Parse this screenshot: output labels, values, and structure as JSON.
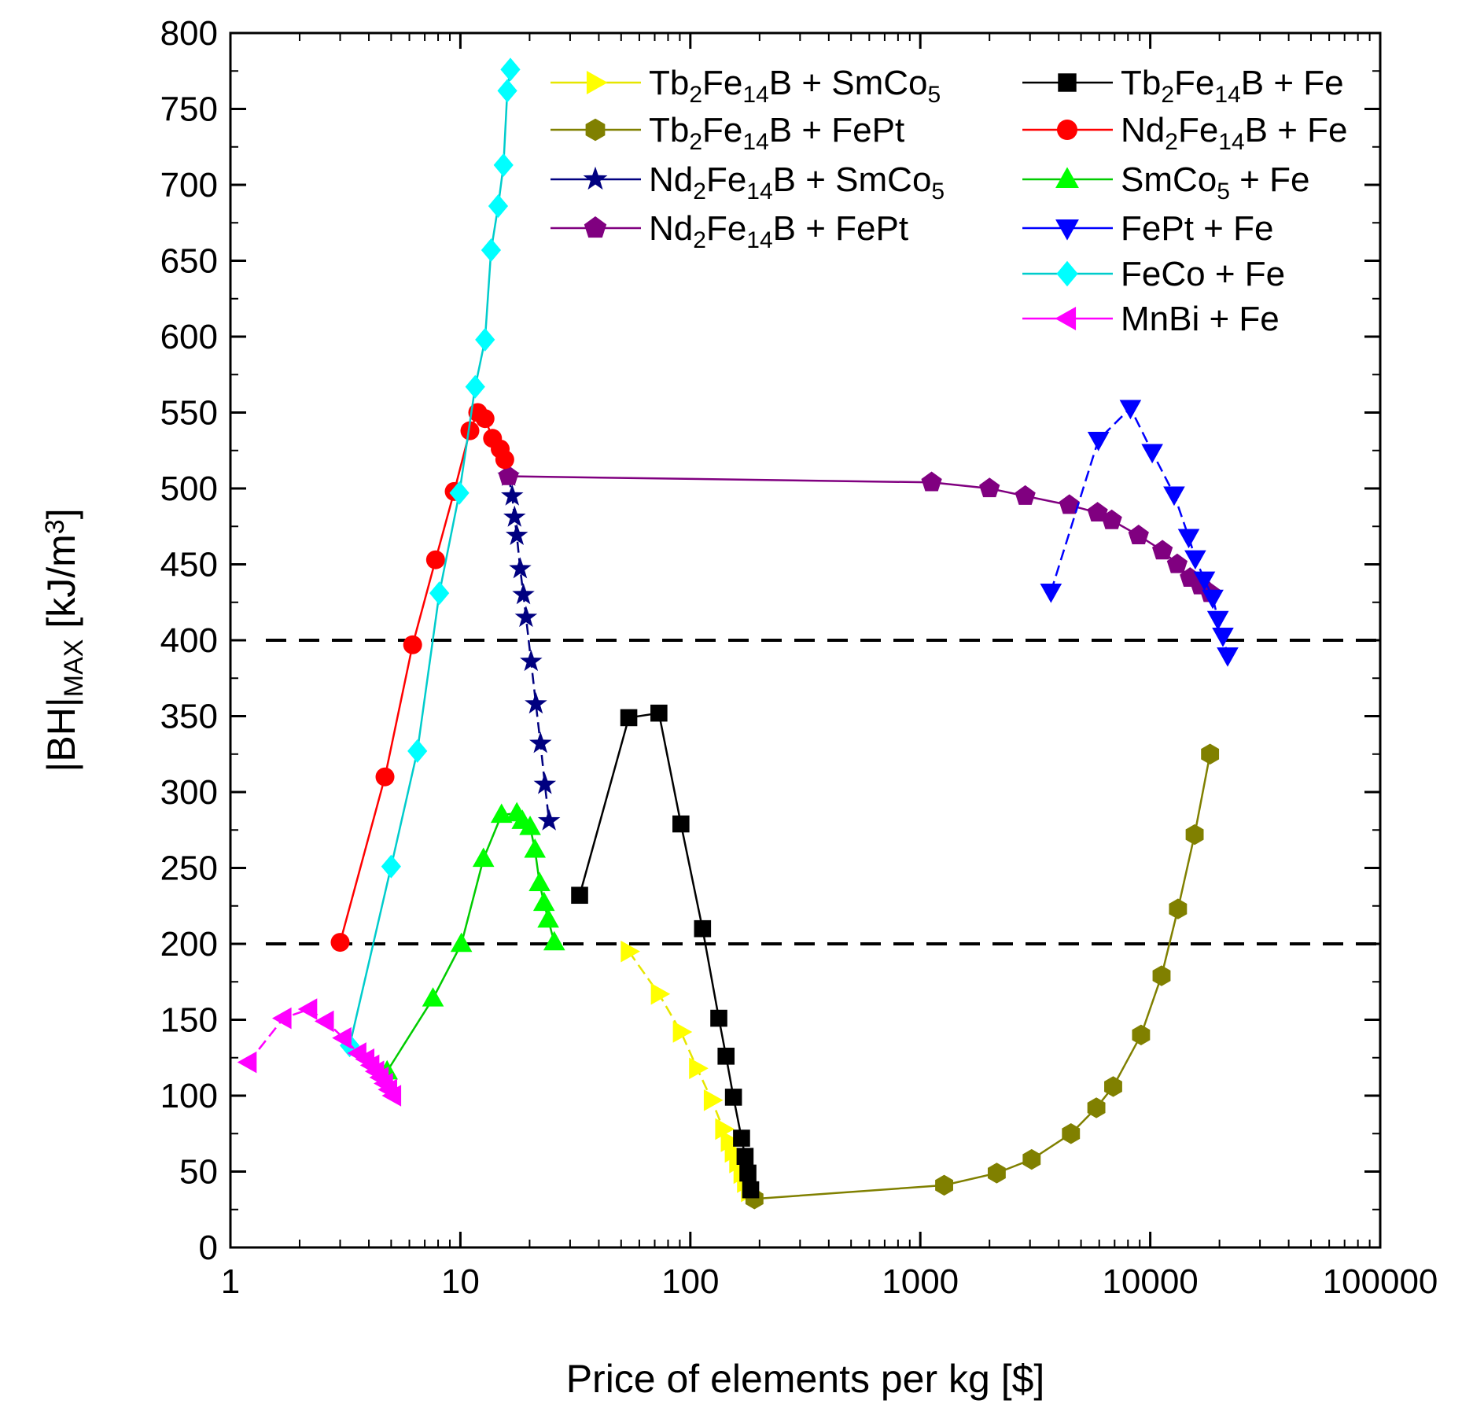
{
  "chart_data": {
    "type": "scatter",
    "xscale": "log",
    "xlim": [
      1,
      100000
    ],
    "ylim": [
      0,
      800
    ],
    "xlabel": "Price of elements per kg [$]",
    "ylabel": {
      "main": "|BH|",
      "sub": "MAX",
      "unit": " [kJ/m",
      "sup": "3",
      "close": "]"
    },
    "xticks": [
      {
        "value": 1,
        "label": "1"
      },
      {
        "value": 10,
        "label": "10"
      },
      {
        "value": 100,
        "label": "100"
      },
      {
        "value": 1000,
        "label": "1000"
      },
      {
        "value": 10000,
        "label": "10000"
      },
      {
        "value": 100000,
        "label": "100000"
      }
    ],
    "yticks": [
      0,
      50,
      100,
      150,
      200,
      250,
      300,
      350,
      400,
      450,
      500,
      550,
      600,
      650,
      700,
      750,
      800
    ],
    "reference_lines": [
      200,
      400
    ],
    "legend_placement": "top-right",
    "series": [
      {
        "name": [
          {
            "t": "Tb"
          },
          {
            "t": "2",
            "sub": true
          },
          {
            "t": "Fe"
          },
          {
            "t": "14",
            "sub": true
          },
          {
            "t": "B + SmCo"
          },
          {
            "t": "5",
            "sub": true
          }
        ],
        "color": "#ffff00",
        "line_color": "#e6e600",
        "marker": "triangle-right",
        "dashed": true,
        "points": [
          [
            54,
            195
          ],
          [
            73,
            167
          ],
          [
            91,
            142
          ],
          [
            107,
            118
          ],
          [
            124,
            97
          ],
          [
            139,
            78
          ],
          [
            147,
            70
          ],
          [
            153,
            63
          ],
          [
            160,
            56
          ],
          [
            167,
            49
          ],
          [
            173,
            43
          ],
          [
            180,
            37
          ]
        ]
      },
      {
        "name": [
          {
            "t": "Tb"
          },
          {
            "t": "2",
            "sub": true
          },
          {
            "t": "Fe"
          },
          {
            "t": "14",
            "sub": true
          },
          {
            "t": "B + FePt"
          }
        ],
        "color": "#808000",
        "line_color": "#808000",
        "marker": "hexagon",
        "dashed": false,
        "points": [
          [
            190,
            32
          ],
          [
            1270,
            41
          ],
          [
            2150,
            49
          ],
          [
            3050,
            58
          ],
          [
            4520,
            75
          ],
          [
            5830,
            92
          ],
          [
            6900,
            106
          ],
          [
            9120,
            140
          ],
          [
            11200,
            179
          ],
          [
            13200,
            223
          ],
          [
            15600,
            272
          ],
          [
            18200,
            325
          ]
        ]
      },
      {
        "name": [
          {
            "t": "Nd"
          },
          {
            "t": "2",
            "sub": true
          },
          {
            "t": "Fe"
          },
          {
            "t": "14",
            "sub": true
          },
          {
            "t": "B + SmCo"
          },
          {
            "t": "5",
            "sub": true
          }
        ],
        "color": "#000080",
        "line_color": "#000080",
        "marker": "star",
        "dashed": true,
        "points": [
          [
            16.2,
            508
          ],
          [
            16.8,
            495
          ],
          [
            17.2,
            481
          ],
          [
            17.6,
            469
          ],
          [
            18.2,
            447
          ],
          [
            18.8,
            430
          ],
          [
            19.3,
            415
          ],
          [
            20.3,
            386
          ],
          [
            21.3,
            358
          ],
          [
            22.3,
            332
          ],
          [
            23.3,
            305
          ],
          [
            24.3,
            281
          ]
        ]
      },
      {
        "name": [
          {
            "t": "Nd"
          },
          {
            "t": "2",
            "sub": true
          },
          {
            "t": "Fe"
          },
          {
            "t": "14",
            "sub": true
          },
          {
            "t": "B + FePt"
          }
        ],
        "color": "#800080",
        "line_color": "#800080",
        "marker": "pentagon",
        "dashed": false,
        "points": [
          [
            16.2,
            508
          ],
          [
            1120,
            504
          ],
          [
            2000,
            500
          ],
          [
            2860,
            495
          ],
          [
            4450,
            489
          ],
          [
            5900,
            484
          ],
          [
            6800,
            479
          ],
          [
            8900,
            469
          ],
          [
            11300,
            459
          ],
          [
            13100,
            450
          ],
          [
            14900,
            441
          ],
          [
            16500,
            436
          ],
          [
            18200,
            431
          ]
        ]
      },
      {
        "name": [
          {
            "t": "Tb"
          },
          {
            "t": "2",
            "sub": true
          },
          {
            "t": "Fe"
          },
          {
            "t": "14",
            "sub": true
          },
          {
            "t": "B + Fe"
          }
        ],
        "color": "#000000",
        "line_color": "#000000",
        "marker": "square",
        "dashed": false,
        "points": [
          [
            33,
            232
          ],
          [
            54,
            349
          ],
          [
            73,
            352
          ],
          [
            91,
            279
          ],
          [
            113,
            210
          ],
          [
            133,
            151
          ],
          [
            143,
            126
          ],
          [
            154,
            99
          ],
          [
            167,
            72
          ],
          [
            173,
            60
          ],
          [
            178,
            49
          ],
          [
            183,
            38
          ]
        ]
      },
      {
        "name": [
          {
            "t": "Nd"
          },
          {
            "t": "2",
            "sub": true
          },
          {
            "t": "Fe"
          },
          {
            "t": "14",
            "sub": true
          },
          {
            "t": "B + Fe"
          }
        ],
        "color": "#ff0000",
        "line_color": "#ff0000",
        "marker": "circle",
        "dashed": false,
        "points": [
          [
            3.0,
            201
          ],
          [
            4.7,
            310
          ],
          [
            6.2,
            397
          ],
          [
            7.8,
            453
          ],
          [
            9.4,
            498
          ],
          [
            11.0,
            538
          ],
          [
            11.9,
            550
          ],
          [
            12.8,
            546
          ],
          [
            13.8,
            533
          ],
          [
            14.9,
            526
          ],
          [
            15.6,
            519
          ]
        ]
      },
      {
        "name": [
          {
            "t": "SmCo"
          },
          {
            "t": "5",
            "sub": true
          },
          {
            "t": " + Fe"
          }
        ],
        "color": "#00ff00",
        "line_color": "#00cc00",
        "marker": "triangle-up",
        "dashed": false,
        "points": [
          [
            4.8,
            116
          ],
          [
            7.6,
            164
          ],
          [
            10.1,
            200
          ],
          [
            12.6,
            256
          ],
          [
            15.1,
            285
          ],
          [
            17.6,
            286
          ],
          [
            18.6,
            281
          ],
          [
            20.1,
            277
          ],
          [
            21.1,
            262
          ],
          [
            22.1,
            240
          ],
          [
            23.1,
            227
          ],
          [
            24.1,
            216
          ],
          [
            25.6,
            201
          ]
        ]
      },
      {
        "name": [
          {
            "t": "FePt + Fe"
          }
        ],
        "color": "#0000ff",
        "line_color": "#0000ff",
        "marker": "triangle-down",
        "dashed": true,
        "points": [
          [
            3700,
            432
          ],
          [
            5950,
            532
          ],
          [
            8200,
            553
          ],
          [
            10200,
            524
          ],
          [
            12700,
            496
          ],
          [
            14700,
            468
          ],
          [
            15700,
            454
          ],
          [
            17200,
            440
          ],
          [
            18700,
            428
          ],
          [
            19700,
            414
          ],
          [
            20700,
            403
          ],
          [
            21700,
            390
          ]
        ]
      },
      {
        "name": [
          {
            "t": "FeCo + Fe"
          }
        ],
        "color": "#00ffff",
        "line_color": "#00cccc",
        "marker": "diamond",
        "dashed": false,
        "points": [
          [
            3.3,
            133
          ],
          [
            5.0,
            251
          ],
          [
            6.5,
            327
          ],
          [
            8.1,
            431
          ],
          [
            9.9,
            497
          ],
          [
            11.6,
            567
          ],
          [
            12.8,
            598
          ],
          [
            13.6,
            657
          ],
          [
            14.6,
            686
          ],
          [
            15.4,
            713
          ],
          [
            16.0,
            762
          ],
          [
            16.5,
            776
          ]
        ]
      },
      {
        "name": [
          {
            "t": "MnBi + Fe"
          }
        ],
        "color": "#ff00ff",
        "line_color": "#ff00ff",
        "marker": "triangle-left",
        "dashed": true,
        "points": [
          [
            1.2,
            122
          ],
          [
            1.7,
            151
          ],
          [
            2.2,
            157
          ],
          [
            2.6,
            149
          ],
          [
            3.1,
            138
          ],
          [
            3.6,
            128
          ],
          [
            3.9,
            124
          ],
          [
            4.1,
            120
          ],
          [
            4.3,
            116
          ],
          [
            4.5,
            112
          ],
          [
            4.7,
            108
          ],
          [
            4.9,
            104
          ],
          [
            5.1,
            100
          ]
        ]
      }
    ]
  }
}
